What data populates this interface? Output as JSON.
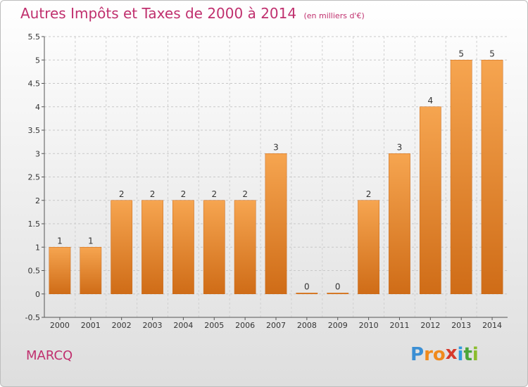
{
  "title": "Autres Impôts et Taxes de 2000 à 2014",
  "subtitle": "(en milliers d'€)",
  "town": "MARCQ",
  "logo": {
    "letters": [
      "P",
      "r",
      "o",
      "x",
      "i",
      "t",
      "i"
    ],
    "colors": [
      "#3b8fd4",
      "#f08a1c",
      "#f08a1c",
      "#d63a2c",
      "#2f9be0",
      "#4aa53a",
      "#8bbd2c"
    ]
  },
  "chart_data": {
    "type": "bar",
    "categories": [
      "2000",
      "2001",
      "2002",
      "2003",
      "2004",
      "2005",
      "2006",
      "2007",
      "2008",
      "2009",
      "2010",
      "2011",
      "2012",
      "2013",
      "2014"
    ],
    "values": [
      1,
      1,
      2,
      2,
      2,
      2,
      2,
      3,
      0,
      0,
      2,
      3,
      4,
      5,
      5
    ],
    "labels": [
      "1",
      "1",
      "2",
      "2",
      "2",
      "2",
      "2",
      "3",
      "0",
      "0",
      "2",
      "3",
      "4",
      "5",
      "5"
    ],
    "title": "Autres Impôts et Taxes de 2000 à 2014",
    "xlabel": "",
    "ylabel": "",
    "ylim": [
      -0.5,
      5.5
    ],
    "yticks": [
      "-0.5",
      "0",
      "0.5",
      "1",
      "1.5",
      "2",
      "2.5",
      "3",
      "3.5",
      "4",
      "4.5",
      "5",
      "5.5"
    ],
    "grid": true,
    "bar_color": "#f0923a"
  }
}
